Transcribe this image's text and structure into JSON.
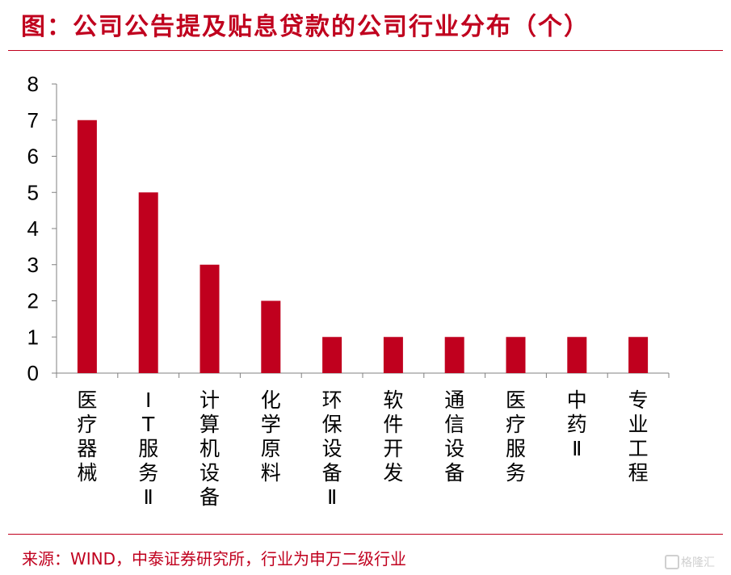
{
  "header": {
    "title": "图：公司公告提及贴息贷款的公司行业分布（个）"
  },
  "footer": {
    "source": "来源：WIND，中泰证券研究所，行业为申万二级行业",
    "watermark": "格隆汇"
  },
  "colors": {
    "accent": "#c0001e",
    "bar": "#c0001e",
    "axis": "#808080",
    "text": "#000000"
  },
  "chart_data": {
    "type": "bar",
    "title": "图：公司公告提及贴息贷款的公司行业分布（个）",
    "xlabel": "",
    "ylabel": "",
    "categories": [
      "医疗器械",
      "IT服务Ⅱ",
      "计算机设备",
      "化学原料",
      "环保设备Ⅱ",
      "软件开发",
      "通信设备",
      "医疗服务",
      "中药Ⅱ",
      "专业工程"
    ],
    "values": [
      7,
      5,
      3,
      2,
      1,
      1,
      1,
      1,
      1,
      1
    ],
    "ylim": [
      0,
      8
    ],
    "yticks": [
      0,
      1,
      2,
      3,
      4,
      5,
      6,
      7,
      8
    ],
    "grid": false,
    "legend": "none"
  }
}
